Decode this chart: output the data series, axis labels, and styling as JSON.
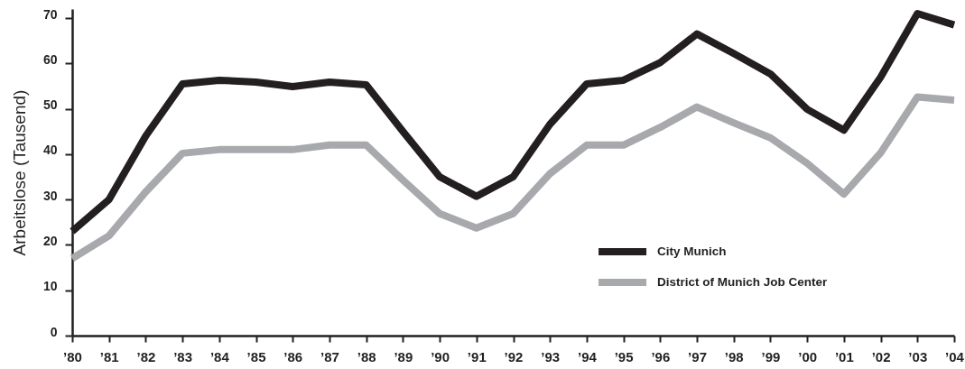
{
  "chart_data": {
    "type": "line",
    "ylabel": "Arbeitslose (Tausend)",
    "categories": [
      "’80",
      "’81",
      "’82",
      "’83",
      "’84",
      "’85",
      "’86",
      "’87",
      "’88",
      "’89",
      "’90",
      "’91",
      "’92",
      "’93",
      "’94",
      "’95",
      "’96",
      "’97",
      "’98",
      "’99",
      "’00",
      "’01",
      "’02",
      "’03",
      "’04"
    ],
    "series": [
      {
        "name": "City Munich",
        "color": "#231f20",
        "values": [
          23,
          30,
          44,
          55.5,
          56.3,
          55.9,
          54.9,
          55.9,
          55.3,
          45,
          35,
          30.7,
          35,
          46.6,
          55.5,
          56.3,
          60.2,
          66.5,
          62.2,
          57.7,
          49.9,
          45.3,
          57,
          71,
          68.5
        ]
      },
      {
        "name": "District of Munich Job Center",
        "color": "#a7a9ac",
        "values": [
          17,
          22,
          31.7,
          40.2,
          41,
          41,
          41,
          42,
          42,
          34.3,
          26.9,
          23.7,
          26.9,
          35.7,
          42,
          42,
          45.9,
          50.4,
          46.9,
          43.6,
          38,
          31.2,
          40.3,
          52.6,
          51.9
        ]
      }
    ],
    "ylim": [
      0,
      72
    ],
    "yticks": [
      0,
      10,
      20,
      30,
      40,
      50,
      60,
      70
    ],
    "legend": "bottom right"
  }
}
